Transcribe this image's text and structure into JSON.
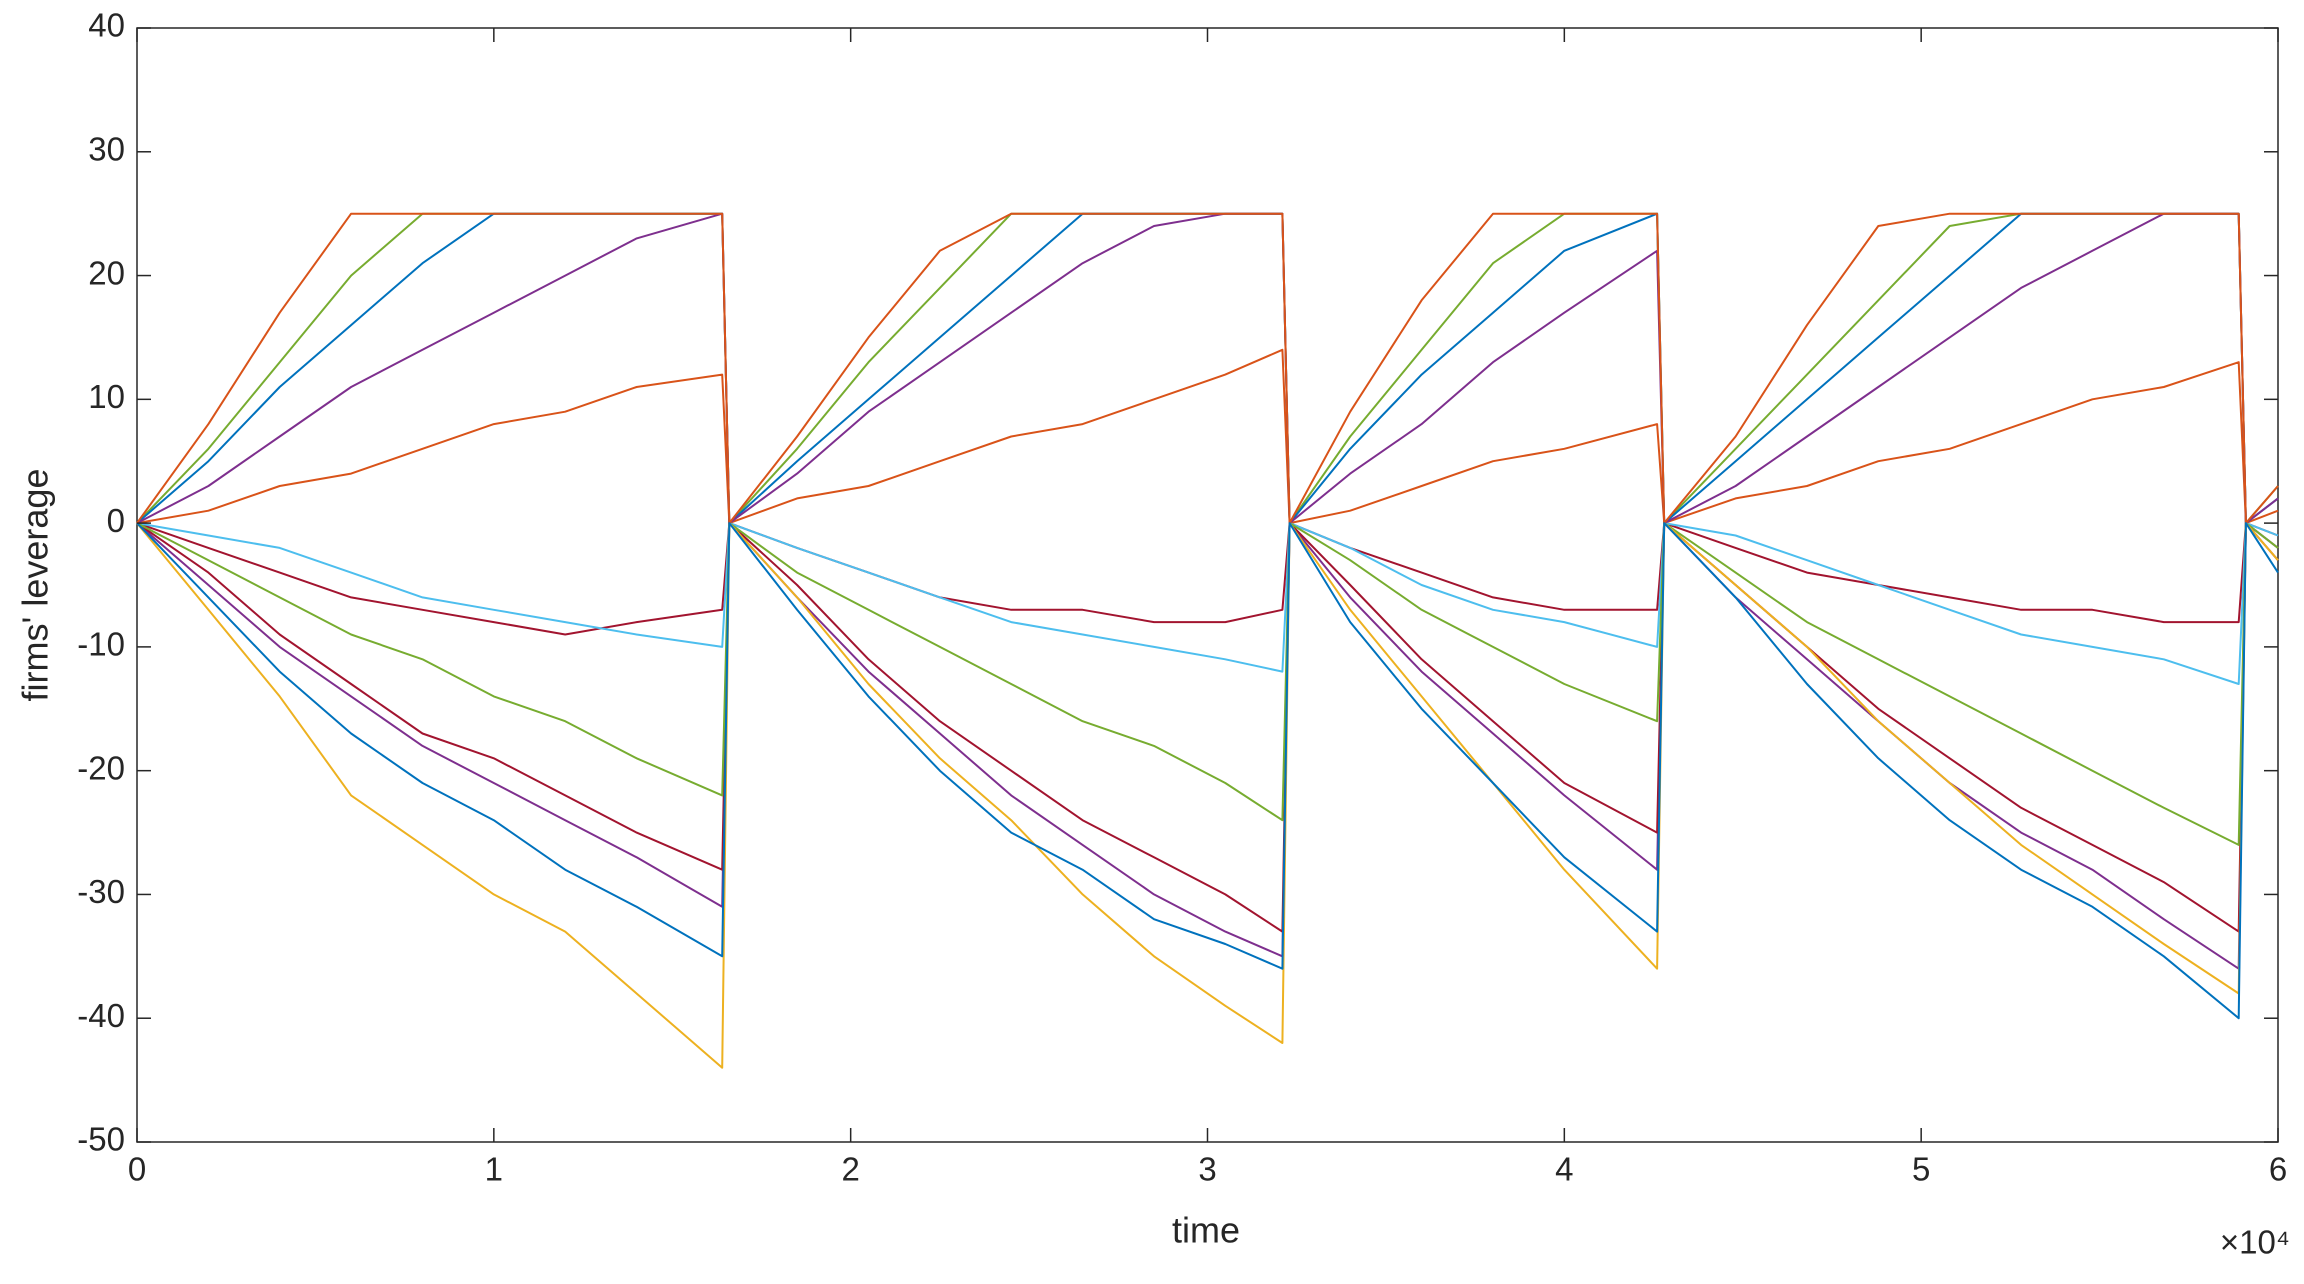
{
  "chart_data": {
    "type": "line",
    "xlabel": "time",
    "ylabel": "firms' leverage",
    "x_multiplier": "×10⁴",
    "xlim": [
      0,
      60000
    ],
    "ylim": [
      -50,
      40
    ],
    "xticks": [
      0,
      {
        "value": 10000,
        "label": "1"
      },
      {
        "value": 20000,
        "label": "2"
      },
      {
        "value": 30000,
        "label": "3"
      },
      {
        "value": 40000,
        "label": "4"
      },
      {
        "value": 50000,
        "label": "5"
      },
      {
        "value": 60000,
        "label": "6"
      }
    ],
    "yticks": [
      -50,
      -40,
      -30,
      -20,
      -10,
      0,
      10,
      20,
      30,
      40
    ],
    "grid": false,
    "x": [
      0,
      2000,
      4000,
      6000,
      8000,
      10000,
      12000,
      14000,
      16400,
      16600,
      18500,
      20500,
      22500,
      24500,
      26500,
      28500,
      30500,
      32100,
      32300,
      34000,
      36000,
      38000,
      40000,
      42600,
      42800,
      44800,
      46800,
      48800,
      50800,
      52800,
      54800,
      56800,
      58900,
      59100,
      60000
    ],
    "series": [
      {
        "color": "#0072BD",
        "values": [
          0,
          -6,
          -12,
          -17,
          -21,
          -24,
          -28,
          -31,
          -35,
          0,
          -7,
          -14,
          -20,
          -25,
          -28,
          -32,
          -34,
          -36,
          0,
          -8,
          -15,
          -21,
          -27,
          -33,
          0,
          -6,
          -13,
          -19,
          -24,
          -28,
          -31,
          -35,
          -40,
          0,
          -4
        ]
      },
      {
        "color": "#D95319",
        "values": [
          0,
          8,
          17,
          25,
          25,
          25,
          25,
          25,
          25,
          0,
          7,
          15,
          22,
          25,
          25,
          25,
          25,
          25,
          0,
          9,
          18,
          25,
          25,
          25,
          0,
          7,
          16,
          24,
          25,
          25,
          25,
          25,
          25,
          0,
          3
        ]
      },
      {
        "color": "#EDB120",
        "values": [
          0,
          -7,
          -14,
          -22,
          -26,
          -30,
          -33,
          -38,
          -44,
          0,
          -6,
          -13,
          -19,
          -24,
          -30,
          -35,
          -39,
          -42,
          0,
          -7,
          -14,
          -21,
          -28,
          -36,
          0,
          -5,
          -10,
          -16,
          -21,
          -26,
          -30,
          -34,
          -38,
          0,
          -3
        ]
      },
      {
        "color": "#7E2F8E",
        "values": [
          0,
          3,
          7,
          11,
          14,
          17,
          20,
          23,
          25,
          0,
          4,
          9,
          13,
          17,
          21,
          24,
          25,
          25,
          0,
          4,
          8,
          13,
          17,
          22,
          0,
          3,
          7,
          11,
          15,
          19,
          22,
          25,
          25,
          0,
          2
        ]
      },
      {
        "color": "#77AC30",
        "values": [
          0,
          -3,
          -6,
          -9,
          -11,
          -14,
          -16,
          -19,
          -22,
          0,
          -4,
          -7,
          -10,
          -13,
          -16,
          -18,
          -21,
          -24,
          0,
          -3,
          -7,
          -10,
          -13,
          -16,
          0,
          -4,
          -8,
          -11,
          -14,
          -17,
          -20,
          -23,
          -26,
          0,
          -2
        ]
      },
      {
        "color": "#4DBEEE",
        "values": [
          0,
          -1,
          -2,
          -4,
          -6,
          -7,
          -8,
          -9,
          -10,
          0,
          -2,
          -4,
          -6,
          -8,
          -9,
          -10,
          -11,
          -12,
          0,
          -2,
          -5,
          -7,
          -8,
          -10,
          0,
          -1,
          -3,
          -5,
          -7,
          -9,
          -10,
          -11,
          -13,
          0,
          -1
        ]
      },
      {
        "color": "#A2142F",
        "values": [
          0,
          -4,
          -9,
          -13,
          -17,
          -19,
          -22,
          -25,
          -28,
          0,
          -5,
          -11,
          -16,
          -20,
          -24,
          -27,
          -30,
          -33,
          0,
          -5,
          -11,
          -16,
          -21,
          -25,
          0,
          -5,
          -10,
          -15,
          -19,
          -23,
          -26,
          -29,
          -33,
          0,
          -3
        ]
      },
      {
        "color": "#0072BD",
        "values": [
          0,
          5,
          11,
          16,
          21,
          25,
          25,
          25,
          25,
          0,
          5,
          10,
          15,
          20,
          25,
          25,
          25,
          25,
          0,
          6,
          12,
          17,
          22,
          25,
          0,
          5,
          10,
          15,
          20,
          25,
          25,
          25,
          25,
          0,
          2
        ]
      },
      {
        "color": "#D95319",
        "values": [
          0,
          1,
          3,
          4,
          6,
          8,
          9,
          11,
          12,
          0,
          2,
          3,
          5,
          7,
          8,
          10,
          12,
          14,
          0,
          1,
          3,
          5,
          6,
          8,
          0,
          2,
          3,
          5,
          6,
          8,
          10,
          11,
          13,
          0,
          1
        ]
      },
      {
        "color": "#77AC30",
        "values": [
          0,
          6,
          13,
          20,
          25,
          25,
          25,
          25,
          25,
          0,
          6,
          13,
          19,
          25,
          25,
          25,
          25,
          25,
          0,
          7,
          14,
          21,
          25,
          25,
          0,
          6,
          12,
          18,
          24,
          25,
          25,
          25,
          25,
          0,
          3
        ]
      },
      {
        "color": "#7E2F8E",
        "values": [
          0,
          -5,
          -10,
          -14,
          -18,
          -21,
          -24,
          -27,
          -31,
          0,
          -6,
          -12,
          -17,
          -22,
          -26,
          -30,
          -33,
          -35,
          0,
          -6,
          -12,
          -17,
          -22,
          -28,
          0,
          -6,
          -11,
          -16,
          -21,
          -25,
          -28,
          -32,
          -36,
          0,
          -2
        ]
      },
      {
        "color": "#A2142F",
        "values": [
          0,
          -2,
          -4,
          -6,
          -7,
          -8,
          -9,
          -8,
          -7,
          0,
          -2,
          -4,
          -6,
          -7,
          -7,
          -8,
          -8,
          -7,
          0,
          -2,
          -4,
          -6,
          -7,
          -7,
          0,
          -2,
          -4,
          -5,
          -6,
          -7,
          -7,
          -8,
          -8,
          0,
          -1
        ]
      }
    ]
  }
}
